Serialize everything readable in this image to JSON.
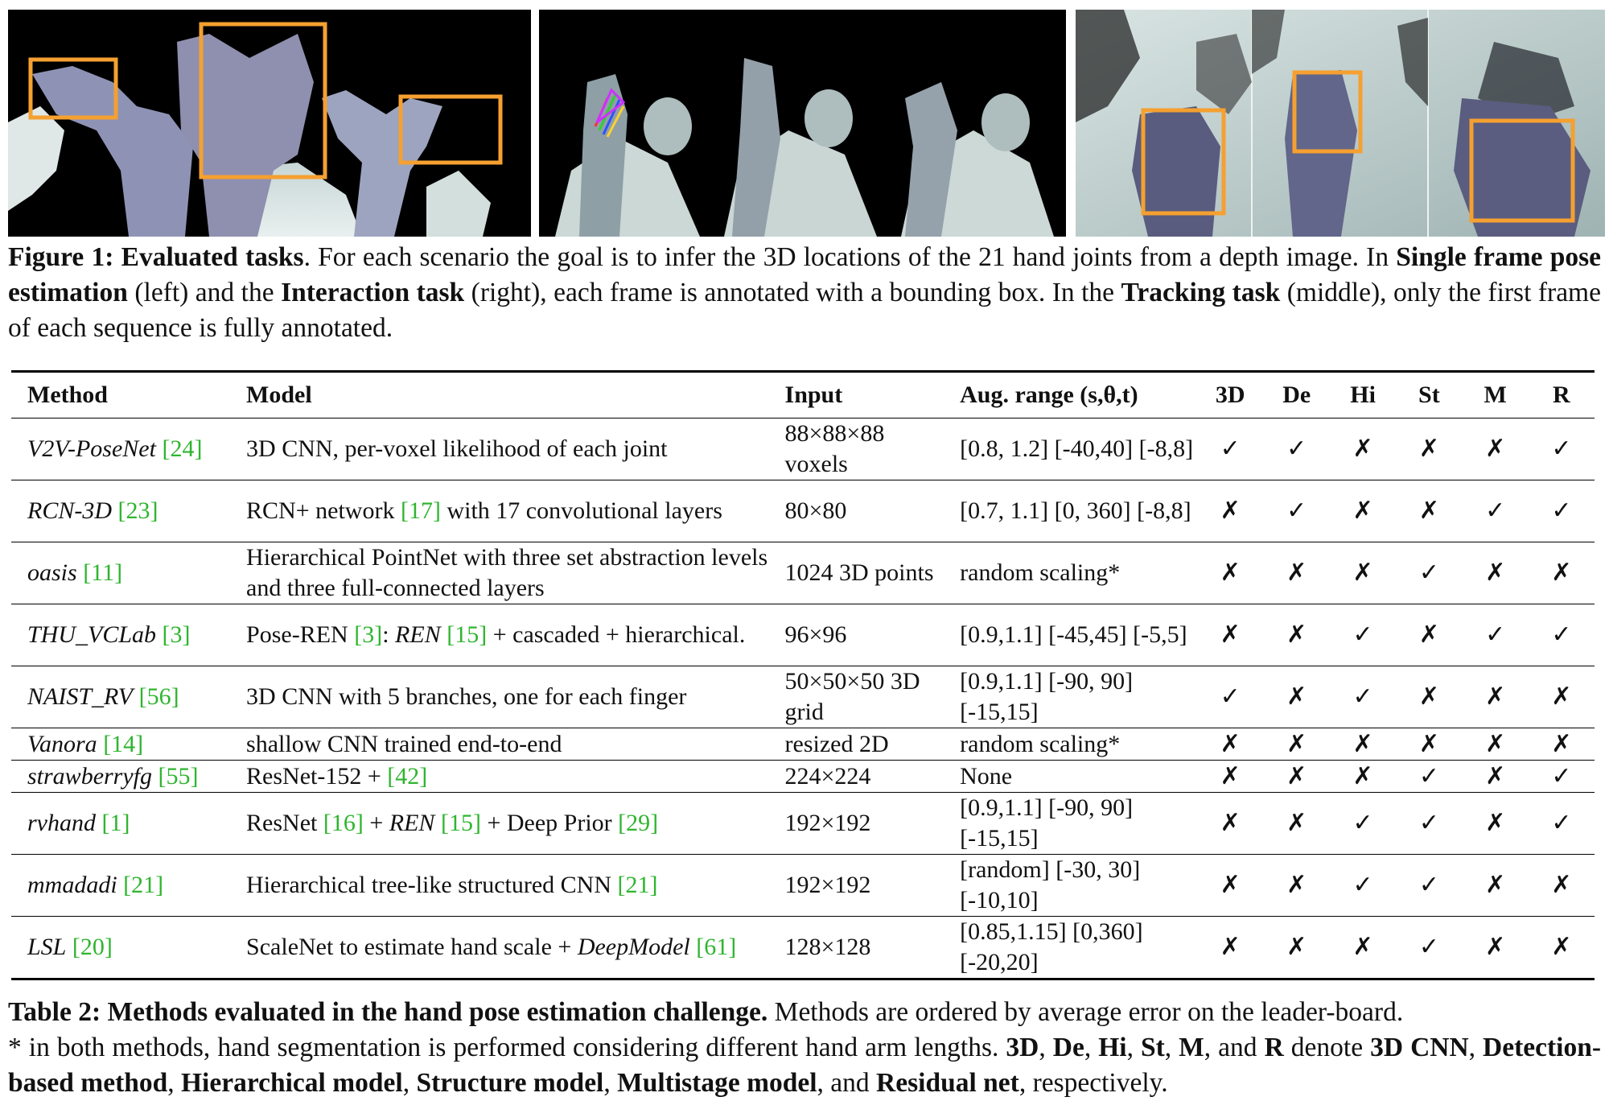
{
  "figure": {
    "panels": [
      {
        "id": "single-frame",
        "description_icon": "depth-hands-boxes"
      },
      {
        "id": "tracking",
        "description_icon": "depth-hands-skeleton"
      },
      {
        "id": "interaction",
        "description_icon": "depth-hand-objects"
      }
    ],
    "box_color": "#f5a030",
    "caption": {
      "label": "Figure 1:",
      "title": "Evaluated tasks",
      "text1": ". For each scenario the goal is to infer the 3D locations of the 21 hand joints from a depth image. In ",
      "bold1": "Single frame pose estimation",
      "text2": " (left) and the ",
      "bold2": "Interaction task",
      "text3": " (right), each frame is annotated with a bounding box. In the ",
      "bold3": "Tracking task",
      "text4": " (middle), only the first frame of each sequence is fully annotated."
    }
  },
  "table": {
    "headers": [
      "Method",
      "Model",
      "Input",
      "Aug. range (s,θ,t)",
      "3D",
      "De",
      "Hi",
      "St",
      "M",
      "R"
    ],
    "check": "✓",
    "cross": "✗",
    "rows": [
      {
        "method": "V2V-PoseNet",
        "ref": "[24]",
        "model": "3D CNN, per-voxel likelihood of each joint",
        "input": "88×88×88 voxels",
        "aug": "[0.8, 1.2] [-40,40] [-8,8]",
        "flags": [
          "✓",
          "✓",
          "✗",
          "✗",
          "✗",
          "✓"
        ]
      },
      {
        "method": "RCN-3D",
        "ref": "[23]",
        "model_a": "RCN+ network ",
        "model_ref": "[17]",
        "model_b": " with 17 convolutional layers",
        "input": "80×80",
        "aug": "[0.7, 1.1] [0, 360] [-8,8]",
        "flags": [
          "✗",
          "✓",
          "✗",
          "✗",
          "✓",
          "✓"
        ]
      },
      {
        "method": "oasis",
        "ref": "[11]",
        "model": "Hierarchical PointNet with three set abstraction levels and three full-connected layers",
        "input": "1024 3D points",
        "aug": "random scaling*",
        "flags": [
          "✗",
          "✗",
          "✗",
          "✓",
          "✗",
          "✗"
        ]
      },
      {
        "method": "THU_VCLab",
        "ref": "[3]",
        "model_a": "Pose-REN ",
        "model_ref1": "[3]",
        "model_colon": ": ",
        "model_it": "REN",
        "model_sp": " ",
        "model_ref2": "[15]",
        "model_b": " + cascaded + hierarchical.",
        "input": "96×96",
        "aug": "[0.9,1.1] [-45,45] [-5,5]",
        "flags": [
          "✗",
          "✗",
          "✓",
          "✗",
          "✓",
          "✓"
        ]
      },
      {
        "method": "NAIST_RV",
        "ref": "[56]",
        "model": "3D CNN with 5 branches, one for each finger",
        "input": "50×50×50 3D grid",
        "aug": "[0.9,1.1] [-90, 90] [-15,15]",
        "flags": [
          "✓",
          "✗",
          "✓",
          "✗",
          "✗",
          "✗"
        ]
      },
      {
        "method": "Vanora",
        "ref": "[14]",
        "model": "shallow CNN trained end-to-end",
        "input": "resized 2D",
        "aug": "random scaling*",
        "flags": [
          "✗",
          "✗",
          "✗",
          "✗",
          "✗",
          "✗"
        ]
      },
      {
        "method": "strawberryfg",
        "ref": "[55]",
        "model_a": "ResNet-152 + ",
        "model_ref": "[42]",
        "input": "224×224",
        "aug": "None",
        "flags": [
          "✗",
          "✗",
          "✗",
          "✓",
          "✗",
          "✓"
        ]
      },
      {
        "method": "rvhand",
        "ref": "[1]",
        "model_a": "ResNet ",
        "model_ref1": "[16]",
        "model_plus": " + ",
        "model_it": "REN",
        "model_sp": " ",
        "model_ref2": "[15]",
        "model_b": " + Deep Prior ",
        "model_ref3": "[29]",
        "input": "192×192",
        "aug": "[0.9,1.1] [-90, 90] [-15,15]",
        "flags": [
          "✗",
          "✗",
          "✓",
          "✓",
          "✗",
          "✓"
        ]
      },
      {
        "method": "mmadadi",
        "ref": "[21]",
        "model_a": "Hierarchical tree-like structured CNN ",
        "model_ref": "[21]",
        "input": "192×192",
        "aug": "[random] [-30, 30] [-10,10]",
        "flags": [
          "✗",
          "✗",
          "✓",
          "✓",
          "✗",
          "✗"
        ]
      },
      {
        "method": "LSL",
        "ref": "[20]",
        "model_a": "ScaleNet to estimate hand scale + ",
        "model_it": "DeepModel",
        "model_sp": " ",
        "model_ref": "[61]",
        "input": "128×128",
        "aug": "[0.85,1.15] [0,360] [-20,20]",
        "flags": [
          "✗",
          "✗",
          "✗",
          "✓",
          "✗",
          "✗"
        ]
      }
    ],
    "caption": {
      "label": "Table 2:",
      "title": "Methods evaluated in the hand pose estimation challenge.",
      "text1": " Methods are ordered by average error on the leader-board.",
      "text2": "* in both methods, hand segmentation is performed considering different hand arm lengths. ",
      "b1": "3D",
      "s1": ", ",
      "b2": "De",
      "s2": ", ",
      "b3": "Hi",
      "s3": ", ",
      "b4": "St",
      "s4": ", ",
      "b5": "M",
      "s5": ", and ",
      "b6": "R",
      "s6": " denote ",
      "b7": "3D CNN",
      "s7": ", ",
      "b8": "Detection-based method",
      "s8": ", ",
      "b9": "Hierarchical model",
      "s9": ", ",
      "b10": "Structure model",
      "s10": ", ",
      "b11": "Multistage model",
      "s11": ", and ",
      "b12": "Residual net",
      "s12": ", respectively."
    }
  }
}
